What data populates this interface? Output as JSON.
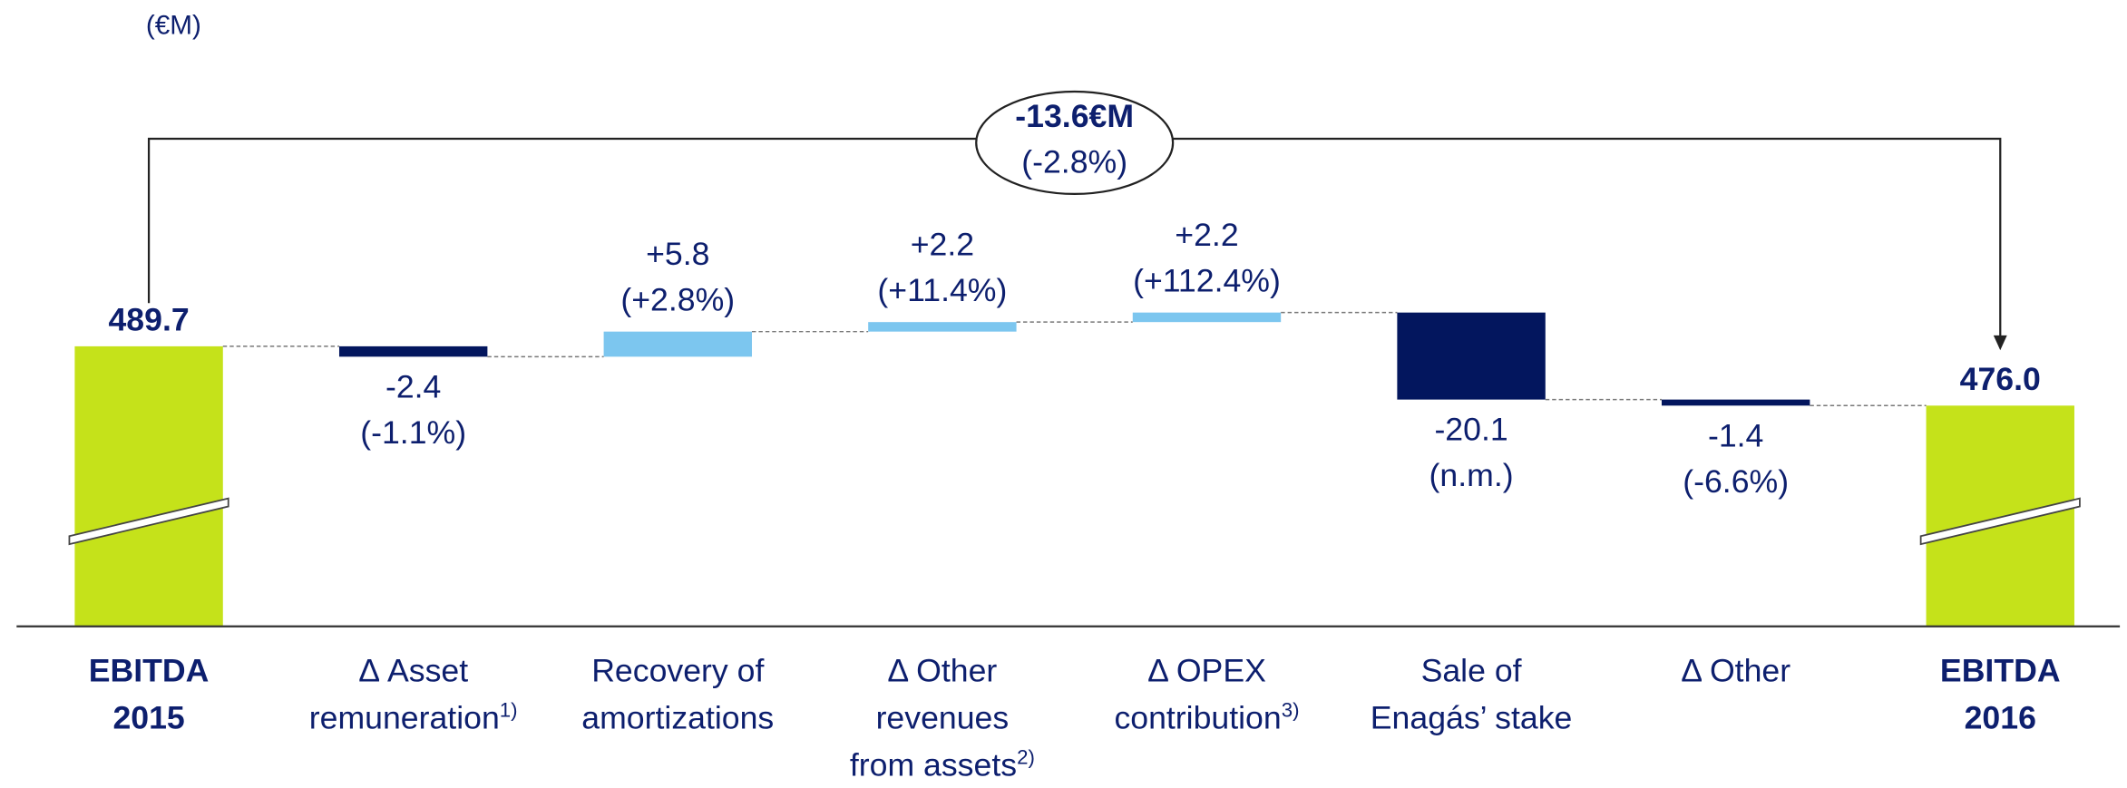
{
  "chart_data": {
    "type": "waterfall",
    "unit": "(€M)",
    "categories": [
      [
        "EBITDA",
        "2015"
      ],
      [
        "Δ Asset",
        "remuneration"
      ],
      [
        "Recovery of",
        "amortizations"
      ],
      [
        "Δ Other",
        "revenues",
        "from assets"
      ],
      [
        "Δ OPEX",
        "contribution"
      ],
      [
        "Sale of",
        "Enagás’ stake"
      ],
      [
        "Δ Other"
      ],
      [
        "EBITDA",
        "2016"
      ]
    ],
    "footnotes": [
      null,
      "1)",
      null,
      "2)",
      "3)",
      null,
      null,
      null
    ],
    "totals": [
      true,
      false,
      false,
      false,
      false,
      false,
      false,
      true
    ],
    "values": [
      489.7,
      -2.4,
      5.8,
      2.2,
      2.2,
      -20.1,
      -1.4,
      476.0
    ],
    "value_labels": [
      "489.7",
      "-2.4",
      "+5.8",
      "+2.2",
      "+2.2",
      "-20.1",
      "-1.4",
      "476.0"
    ],
    "percent_labels": [
      null,
      "(-1.1%)",
      "(+2.8%)",
      "(+11.4%)",
      "(+112.4%)",
      "(n.m.)",
      "(-6.6%)",
      null
    ],
    "colors": [
      "#c5e21a",
      "#03165e",
      "#7cc6ef",
      "#7cc6ef",
      "#7cc6ef",
      "#03165e",
      "#03165e",
      "#c5e21a"
    ],
    "ylim": [
      425,
      500
    ],
    "axis_break": true,
    "change_annotation": {
      "value": "-13.6€M",
      "percent": "(-2.8%)"
    }
  }
}
